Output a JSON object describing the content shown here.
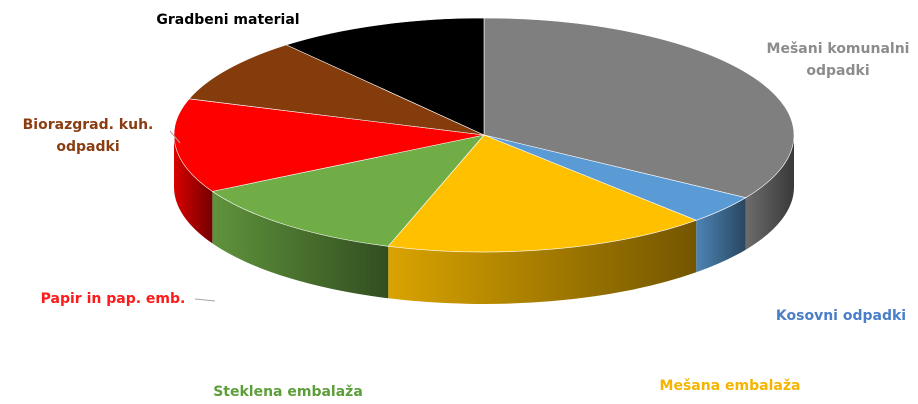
{
  "chart_data": {
    "type": "pie",
    "style": "3d-exploded-tilted",
    "title": "",
    "legend": "none",
    "slices": [
      {
        "label": "Mešani komunalni odpadki",
        "label_lines": [
          "Mešani komunalni",
          "odpadki"
        ],
        "value": 34,
        "color": "#7f7f7f",
        "label_color": "#8c8c8c"
      },
      {
        "label": "Kosovni odpadki",
        "label_lines": [
          "Kosovni odpadki"
        ],
        "value": 4,
        "color": "#5b9bd5",
        "label_color": "#4a7ec8"
      },
      {
        "label": "Mešana embalaža",
        "label_lines": [
          "Mešana embalaža"
        ],
        "value": 17,
        "color": "#ffc000",
        "label_color": "#f4b400"
      },
      {
        "label": "Steklena embalaža",
        "label_lines": [
          "Steklena embalaža"
        ],
        "value": 12,
        "color": "#70ad47",
        "label_color": "#5c9e3a"
      },
      {
        "label": "Papir in pap. emb.",
        "label_lines": [
          "Papir in pap. emb."
        ],
        "value": 13,
        "color": "#ff0000",
        "label_color": "#ff1a1a"
      },
      {
        "label": "Biorazgrad. kuh. odpadki",
        "label_lines": [
          "Biorazgrad. kuh.",
          "odpadki"
        ],
        "value": 9,
        "color": "#843c0c",
        "label_color": "#8b3d12"
      },
      {
        "label": "Gradbeni material",
        "label_lines": [
          "Gradbeni material"
        ],
        "value": 11,
        "color": "#000000",
        "label_color": "#000000"
      }
    ]
  }
}
